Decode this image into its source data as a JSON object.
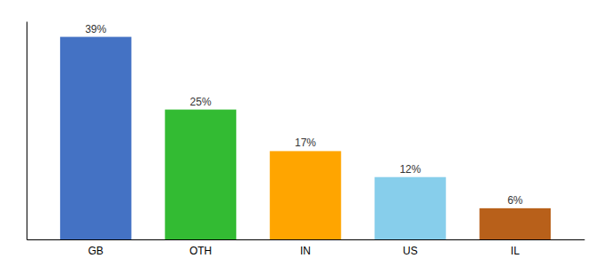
{
  "chart_data": {
    "type": "bar",
    "categories": [
      "GB",
      "OTH",
      "IN",
      "US",
      "IL"
    ],
    "values": [
      39,
      25,
      17,
      12,
      6
    ],
    "value_labels": [
      "39%",
      "25%",
      "17%",
      "12%",
      "6%"
    ],
    "colors": [
      "#4472C4",
      "#33BB33",
      "#FFA500",
      "#87CEEB",
      "#B8601A"
    ],
    "ylim": [
      0,
      42
    ],
    "data_labels": true,
    "tick_labels": "x"
  }
}
